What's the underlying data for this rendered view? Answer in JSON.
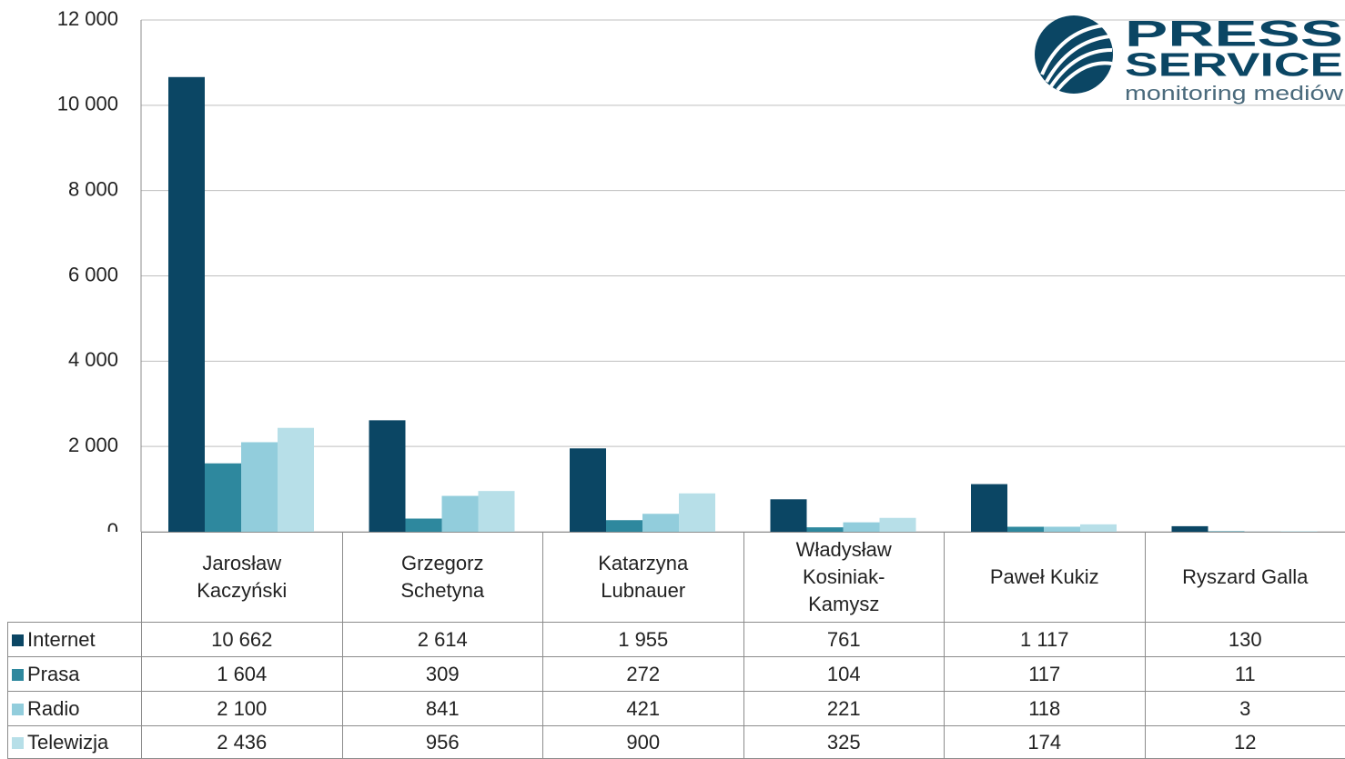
{
  "chart_data": {
    "type": "bar",
    "categories": [
      "Jarosław\nKaczyński",
      "Grzegorz\nSchetyna",
      "Katarzyna\nLubnauer",
      "Władysław\nKosiniak-\nKamysz",
      "Paweł Kukiz",
      "Ryszard Galla"
    ],
    "series": [
      {
        "name": "Internet",
        "color": "#0b4664",
        "values": [
          10662,
          2614,
          1955,
          761,
          1117,
          130
        ],
        "value_labels": [
          "10 662",
          "2 614",
          "1 955",
          "761",
          "1 117",
          "130"
        ]
      },
      {
        "name": "Prasa",
        "color": "#2e889e",
        "values": [
          1604,
          309,
          272,
          104,
          117,
          11
        ],
        "value_labels": [
          "1 604",
          "309",
          "272",
          "104",
          "117",
          "11"
        ]
      },
      {
        "name": "Radio",
        "color": "#92cddc",
        "values": [
          2100,
          841,
          421,
          221,
          118,
          3
        ],
        "value_labels": [
          "2 100",
          "841",
          "421",
          "221",
          "118",
          "3"
        ]
      },
      {
        "name": "Telewizja",
        "color": "#b7dfe8",
        "values": [
          2436,
          956,
          900,
          325,
          174,
          12
        ],
        "value_labels": [
          "2 436",
          "956",
          "900",
          "325",
          "174",
          "12"
        ]
      }
    ],
    "ylim": [
      0,
      12000
    ],
    "yticks": [
      0,
      {
        "value": 2000,
        "label": "2 000"
      },
      {
        "value": 4000,
        "label": "4 000"
      },
      {
        "value": 6000,
        "label": "6 000"
      },
      {
        "value": 8000,
        "label": "8 000"
      },
      {
        "value": 10000,
        "label": "10 000"
      },
      {
        "value": 12000,
        "label": "12 000"
      }
    ],
    "grid": true
  },
  "logo": {
    "line1": "PRESS",
    "line2": "SERVICE",
    "tagline": "monitoring mediów"
  }
}
